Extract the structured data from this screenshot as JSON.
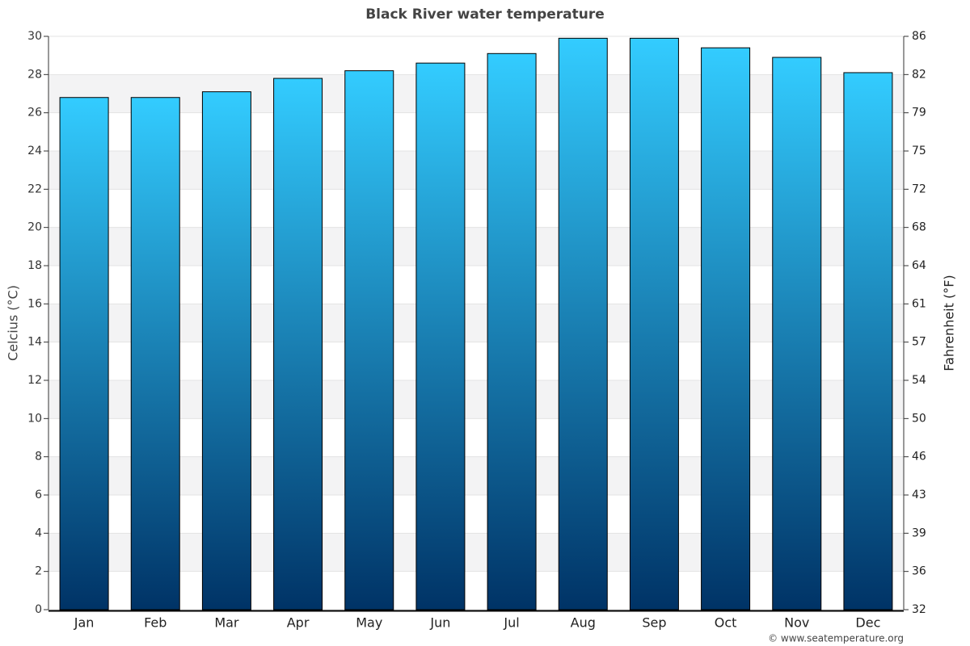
{
  "chart_data": {
    "type": "bar",
    "title": "Black River water temperature",
    "y_label": "Celcius (°C)",
    "y2_label": "Fahrenheit (°F)",
    "credit": "© www.seatemperature.org",
    "categories": [
      "Jan",
      "Feb",
      "Mar",
      "Apr",
      "May",
      "Jun",
      "Jul",
      "Aug",
      "Sep",
      "Oct",
      "Nov",
      "Dec"
    ],
    "values": [
      26.8,
      26.8,
      27.1,
      27.8,
      28.2,
      28.6,
      29.1,
      29.9,
      29.9,
      29.4,
      28.9,
      28.1
    ],
    "gradient": [
      "#33ccff",
      "#003366"
    ],
    "ylim": [
      0,
      30
    ],
    "yticks": [
      0,
      2,
      4,
      6,
      8,
      10,
      12,
      14,
      16,
      18,
      20,
      22,
      24,
      26,
      28,
      30
    ],
    "y2lim": [
      32,
      86
    ],
    "y2ticks": [
      32,
      {
        "value": 35.6,
        "label": "36"
      },
      {
        "value": 39.2,
        "label": "39"
      },
      {
        "value": 42.8,
        "label": "43"
      },
      {
        "value": 46.4,
        "label": "46"
      },
      50,
      {
        "value": 53.6,
        "label": "54"
      },
      {
        "value": 57.2,
        "label": "57"
      },
      {
        "value": 60.8,
        "label": "61"
      },
      {
        "value": 64.4,
        "label": "64"
      },
      68,
      {
        "value": 71.6,
        "label": "72"
      },
      {
        "value": 75.2,
        "label": "75"
      },
      {
        "value": 78.8,
        "label": "79"
      },
      {
        "value": 82.4,
        "label": "82"
      },
      86
    ],
    "grid": true
  }
}
